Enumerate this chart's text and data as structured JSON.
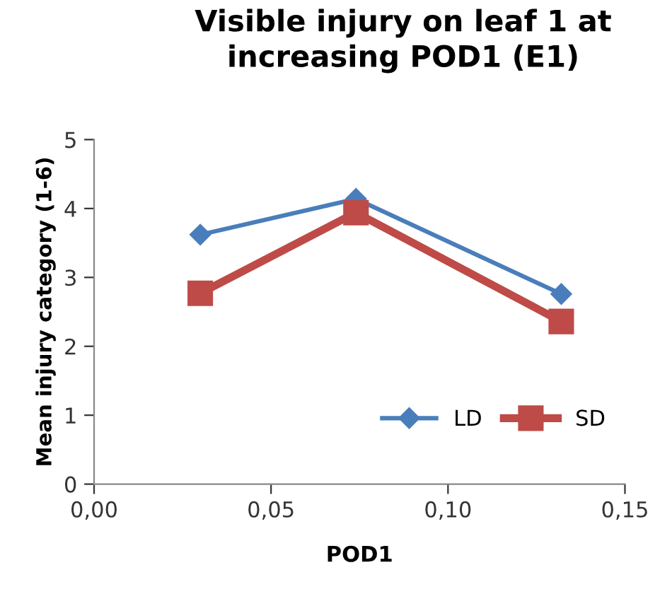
{
  "chart_data": {
    "type": "line",
    "title": "Visible injury on leaf 1 at\nincreasing POD1 (E1)",
    "xlabel": "POD1",
    "ylabel": "Mean injury category (1-6)",
    "x": [
      0.03,
      0.074,
      0.132
    ],
    "series": [
      {
        "name": "LD",
        "color": "#4a7ebb",
        "values": [
          3.62,
          4.14,
          2.76
        ],
        "marker": "diamond"
      },
      {
        "name": "SD",
        "color": "#be4b48",
        "values": [
          2.77,
          3.94,
          2.36
        ],
        "marker": "square"
      }
    ],
    "xlim": [
      0,
      0.15
    ],
    "xticks": [
      {
        "value": 0,
        "label": "0,00"
      },
      {
        "value": 0.05,
        "label": "0,05"
      },
      {
        "value": 0.1,
        "label": "0,10"
      },
      {
        "value": 0.15,
        "label": "0,15"
      }
    ],
    "ylim": [
      0,
      5
    ],
    "yticks": [
      0,
      1,
      2,
      3,
      4,
      5
    ],
    "grid": false,
    "legend": "bottom right",
    "line_style": "solid"
  }
}
